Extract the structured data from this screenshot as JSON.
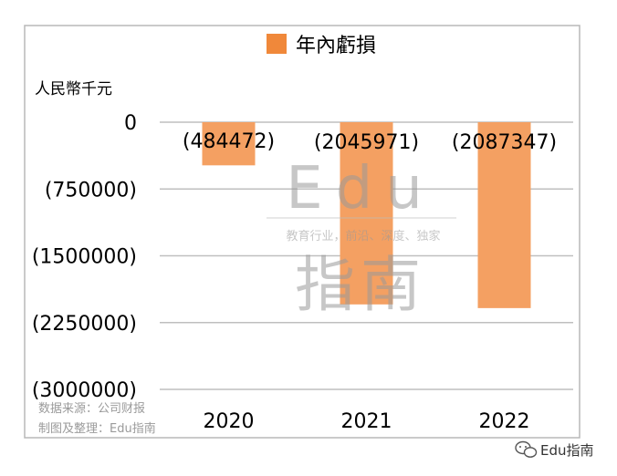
{
  "chart_data": {
    "type": "bar",
    "title": "",
    "legend": [
      {
        "name": "年內虧損",
        "color": "#F0883A"
      }
    ],
    "legend_position": "top",
    "ylabel": "人民幣千元",
    "xlabel": "",
    "categories": [
      "2020",
      "2021",
      "2022"
    ],
    "series": [
      {
        "name": "年內虧損",
        "values": [
          -484472,
          -2045971,
          -2087347
        ]
      }
    ],
    "data_labels": [
      "(484472)",
      "(2045971)",
      "(2087347)"
    ],
    "ylim": [
      -3000000,
      0
    ],
    "yticks": [
      0,
      -750000,
      -1500000,
      -2250000,
      -3000000
    ],
    "ytick_labels": [
      "0",
      "(750000)",
      "(1500000)",
      "(2250000)",
      "(3000000)"
    ],
    "grid": true,
    "bar_color": "#F4A062"
  },
  "source": {
    "line1": "数据来源：公司财报",
    "line2": "制图及整理：Edu指南"
  },
  "watermark": {
    "latin": "Edu",
    "tagline": "教育行业，前沿、深度、独家",
    "cjk": "指南"
  },
  "badge": {
    "text": "Edu指南",
    "icon": "wechat-icon"
  }
}
